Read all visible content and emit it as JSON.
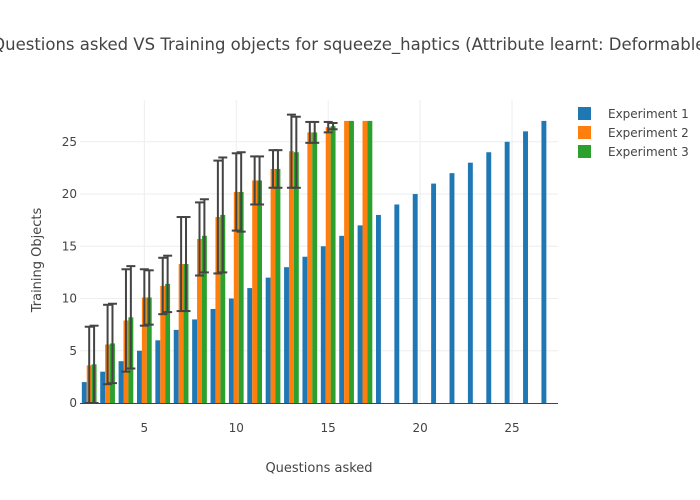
{
  "chart_data": {
    "type": "bar",
    "title": "Questions asked VS Training objects for squeeze_haptics (Attribute learnt: Deformable)",
    "xlabel": "Questions asked",
    "ylabel": "Training Objects",
    "xlim": [
      1.5,
      27.5
    ],
    "ylim": [
      0,
      29
    ],
    "xticks": [
      5,
      10,
      15,
      20,
      25
    ],
    "yticks": [
      0,
      5,
      10,
      15,
      20,
      25
    ],
    "grid": true,
    "legend_position": "top-right",
    "series": [
      {
        "name": "Experiment 1",
        "color": "#1f77b4",
        "x": [
          2,
          3,
          4,
          5,
          6,
          7,
          8,
          9,
          10,
          11,
          12,
          13,
          14,
          15,
          16,
          17,
          18,
          19,
          20,
          21,
          22,
          23,
          24,
          25,
          26,
          27
        ],
        "values": [
          2,
          3,
          4,
          5,
          6,
          7,
          8,
          9,
          10,
          11,
          12,
          13,
          14,
          15,
          16,
          17,
          18,
          19,
          20,
          21,
          22,
          23,
          24,
          25,
          26,
          27
        ]
      },
      {
        "name": "Experiment 2",
        "color": "#ff7f0e",
        "x": [
          2,
          3,
          4,
          5,
          6,
          7,
          8,
          9,
          10,
          11,
          12,
          13,
          14,
          15,
          16,
          17
        ],
        "values": [
          3.6,
          5.6,
          7.9,
          10.1,
          11.2,
          13.3,
          15.7,
          17.8,
          20.2,
          21.3,
          22.4,
          24.1,
          25.9,
          26.4,
          27.0,
          27.0
        ],
        "error": [
          3.7,
          3.8,
          4.9,
          2.7,
          2.7,
          4.5,
          3.5,
          5.4,
          3.7,
          2.3,
          1.8,
          3.5,
          1.0,
          0.5,
          0,
          0
        ]
      },
      {
        "name": "Experiment 3",
        "color": "#2ca02c",
        "x": [
          2,
          3,
          4,
          5,
          6,
          7,
          8,
          9,
          10,
          11,
          12,
          13,
          14,
          15,
          16,
          17
        ],
        "values": [
          3.7,
          5.7,
          8.2,
          10.1,
          11.4,
          13.3,
          16.0,
          18.0,
          20.2,
          21.3,
          22.4,
          24.0,
          25.9,
          26.5,
          27.0,
          27.0
        ],
        "error": [
          3.7,
          3.8,
          4.9,
          2.6,
          2.7,
          4.5,
          3.5,
          5.5,
          3.8,
          2.3,
          1.8,
          3.4,
          1.0,
          0.3,
          0,
          0
        ]
      }
    ]
  }
}
